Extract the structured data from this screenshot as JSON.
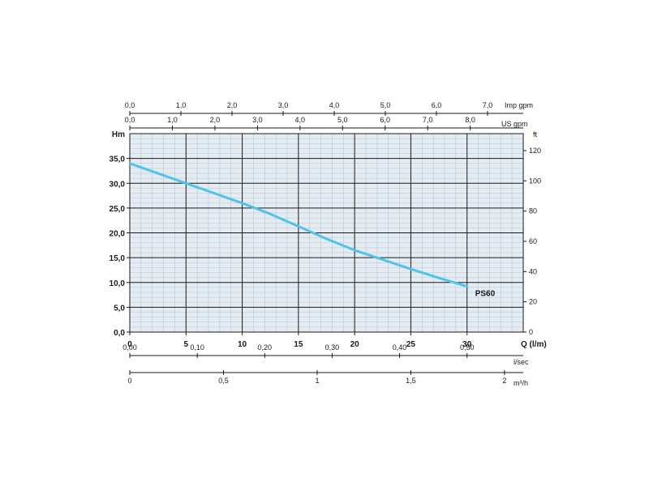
{
  "chart_data": {
    "type": "line",
    "x": [
      0,
      2.5,
      5,
      7.5,
      10,
      12.5,
      15,
      17.5,
      20,
      22.5,
      25,
      27.5,
      30
    ],
    "series": [
      {
        "name": "PS60",
        "values": [
          34.0,
          32.0,
          30.0,
          28.0,
          26.0,
          23.8,
          21.3,
          18.8,
          16.5,
          14.6,
          12.7,
          10.9,
          9.2
        ],
        "color": "#4fc3e8"
      }
    ],
    "xlabel": "Q (l/m)",
    "ylabel": "Hm",
    "xlim": [
      0,
      35
    ],
    "ylim": [
      0,
      40
    ],
    "x_ticks": [
      "0",
      "5",
      "10",
      "15",
      "20",
      "25",
      "30"
    ],
    "y_ticks": [
      "0,0",
      "5,0",
      "10,0",
      "15,0",
      "20,0",
      "25,0",
      "30,0",
      "35,0"
    ],
    "y2": {
      "label": "ft",
      "ticks": [
        "0",
        "20",
        "40",
        "60",
        "80",
        "100",
        "120"
      ]
    },
    "imp_gpm": {
      "label": "Imp gpm",
      "ticks": [
        "0,0",
        "1,0",
        "2,0",
        "3,0",
        "4,0",
        "5,0",
        "6,0",
        "7,0"
      ]
    },
    "us_gpm": {
      "label": "US gpm",
      "ticks": [
        "0,0",
        "1,0",
        "2,0",
        "3,0",
        "4,0",
        "5,0",
        "6,0",
        "7,0",
        "8,0"
      ]
    },
    "lsec": {
      "label": "l/sec",
      "ticks": [
        "0,00",
        "0,10",
        "0,20",
        "0,30",
        "0,40",
        "0,50"
      ]
    },
    "m3h": {
      "label": "m³/h",
      "ticks": [
        "0",
        "0,5",
        "1",
        "1,5",
        "2"
      ]
    },
    "grid": true,
    "colors": {
      "grid_bg": "#e4ebf1",
      "minor_grid": "#b4c6d6",
      "major_grid": "#1a1a1a",
      "curve": "#4fc3e8"
    }
  }
}
